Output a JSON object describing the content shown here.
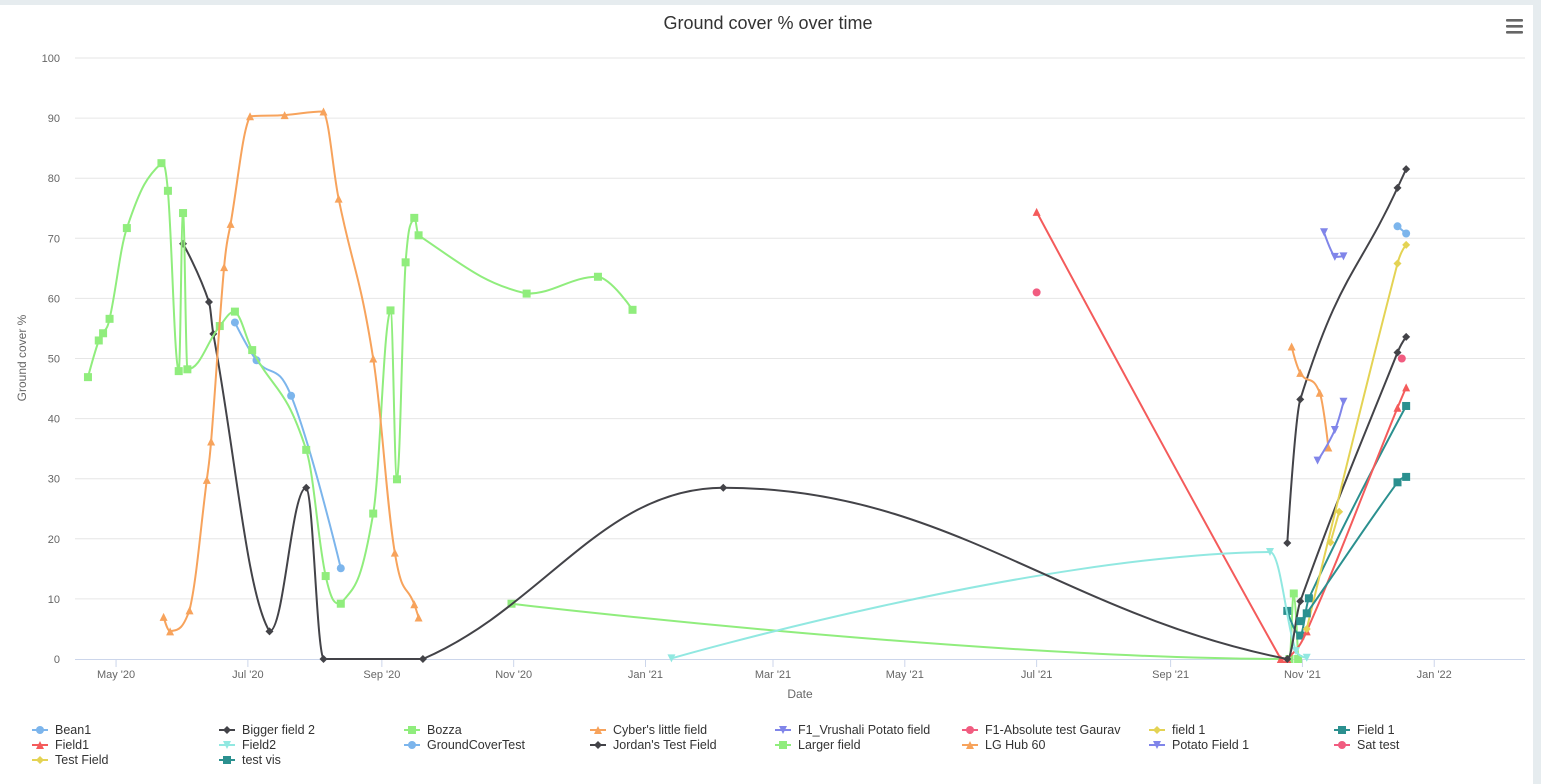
{
  "chart_data": {
    "type": "line",
    "title": "Ground cover % over time",
    "xlabel": "Date",
    "ylabel": "Ground cover %",
    "ylim": [
      0,
      100
    ],
    "yticks": [
      0,
      10,
      20,
      30,
      40,
      50,
      60,
      70,
      80,
      90,
      100
    ],
    "xlim": [
      "2020-04-12",
      "2022-02-12"
    ],
    "xticks": [
      {
        "date": "2020-05-01",
        "label": "May '20"
      },
      {
        "date": "2020-07-01",
        "label": "Jul '20"
      },
      {
        "date": "2020-09-01",
        "label": "Sep '20"
      },
      {
        "date": "2020-11-01",
        "label": "Nov '20"
      },
      {
        "date": "2021-01-01",
        "label": "Jan '21"
      },
      {
        "date": "2021-03-01",
        "label": "Mar '21"
      },
      {
        "date": "2021-05-01",
        "label": "May '21"
      },
      {
        "date": "2021-07-01",
        "label": "Jul '21"
      },
      {
        "date": "2021-09-01",
        "label": "Sep '21"
      },
      {
        "date": "2021-11-01",
        "label": "Nov '21"
      },
      {
        "date": "2022-01-01",
        "label": "Jan '22"
      }
    ],
    "grid": true,
    "legend_position": "bottom",
    "series": [
      {
        "name": "Bean1",
        "color": "#7cb5ec",
        "marker": "circle",
        "points": [
          [
            "2021-12-15",
            72.0
          ],
          [
            "2021-12-19",
            70.8
          ]
        ]
      },
      {
        "name": "Bigger field 2",
        "color": "#434348",
        "marker": "diamond",
        "points": [
          [
            "2021-10-25",
            19.3
          ],
          [
            "2021-10-31",
            43.2
          ],
          [
            "2021-12-15",
            78.4
          ],
          [
            "2021-12-19",
            81.5
          ]
        ]
      },
      {
        "name": "Bozza",
        "color": "#90ed7d",
        "marker": "square",
        "points": [
          [
            "2020-10-31",
            9.2
          ],
          [
            "2021-10-26",
            0.0
          ],
          [
            "2021-10-28",
            10.9
          ],
          [
            "2021-10-30",
            0.0
          ]
        ]
      },
      {
        "name": "Cyber's little field",
        "color": "#f7a35c",
        "marker": "triangle",
        "points": [
          [
            "2021-10-27",
            52.0
          ],
          [
            "2021-10-31",
            47.6
          ],
          [
            "2021-11-09",
            44.3
          ],
          [
            "2021-11-13",
            35.2
          ]
        ]
      },
      {
        "name": "F1_Vrushali Potato field",
        "color": "#8085e9",
        "marker": "triangle-down",
        "points": [
          [
            "2021-11-11",
            71.0
          ],
          [
            "2021-11-16",
            66.9
          ],
          [
            "2021-11-20",
            67.0
          ]
        ]
      },
      {
        "name": "F1-Absolute test Gaurav",
        "color": "#f15c80",
        "marker": "circle",
        "points": [
          [
            "2021-07-01",
            61.0
          ]
        ]
      },
      {
        "name": "field 1",
        "color": "#e4d354",
        "marker": "diamond",
        "points": [
          [
            "2021-11-14",
            19.4
          ],
          [
            "2021-11-18",
            24.5
          ]
        ]
      },
      {
        "name": "Field 1",
        "color": "#2b908f",
        "marker": "square",
        "points": [
          [
            "2021-10-25",
            8.0
          ],
          [
            "2021-10-31",
            3.9
          ],
          [
            "2021-11-04",
            10.1
          ],
          [
            "2021-12-19",
            42.1
          ]
        ]
      },
      {
        "name": "Field1",
        "color": "#f45b5b",
        "marker": "triangle",
        "points": [
          [
            "2021-07-01",
            74.4
          ],
          [
            "2021-10-22",
            0.0
          ],
          [
            "2021-10-25",
            0.0
          ],
          [
            "2021-11-03",
            4.6
          ],
          [
            "2021-12-15",
            41.8
          ],
          [
            "2021-12-19",
            45.2
          ]
        ]
      },
      {
        "name": "Field2",
        "color": "#91e8e1",
        "marker": "triangle-down",
        "points": [
          [
            "2021-01-13",
            0.1
          ],
          [
            "2021-10-17",
            17.8
          ],
          [
            "2021-10-29",
            1.3
          ],
          [
            "2021-11-03",
            0.2
          ]
        ]
      },
      {
        "name": "GroundCoverTest",
        "color": "#7cb5ec",
        "marker": "circle",
        "points": [
          [
            "2020-06-25",
            56.0
          ],
          [
            "2020-07-05",
            49.7
          ],
          [
            "2020-07-21",
            43.8
          ],
          [
            "2020-08-13",
            15.1
          ]
        ]
      },
      {
        "name": "Jordan's Test Field",
        "color": "#434348",
        "marker": "diamond",
        "points": [
          [
            "2020-06-01",
            69.1
          ],
          [
            "2020-06-13",
            59.4
          ],
          [
            "2020-06-15",
            54.1
          ],
          [
            "2020-07-11",
            4.6
          ],
          [
            "2020-07-28",
            28.5
          ],
          [
            "2020-08-05",
            0.0
          ],
          [
            "2020-09-20",
            0.0
          ],
          [
            "2021-02-06",
            28.5
          ],
          [
            "2021-10-25",
            0.0
          ],
          [
            "2021-10-31",
            9.6
          ],
          [
            "2021-12-15",
            51.0
          ],
          [
            "2021-12-19",
            53.6
          ]
        ]
      },
      {
        "name": "Larger field",
        "color": "#90ed7d",
        "marker": "square",
        "points": [
          [
            "2020-04-18",
            46.9
          ],
          [
            "2020-04-23",
            53.0
          ],
          [
            "2020-04-25",
            54.2
          ],
          [
            "2020-04-28",
            56.6
          ],
          [
            "2020-05-06",
            71.7
          ],
          [
            "2020-05-22",
            82.5
          ],
          [
            "2020-05-25",
            77.9
          ],
          [
            "2020-05-30",
            47.9
          ],
          [
            "2020-06-01",
            74.2
          ],
          [
            "2020-06-03",
            48.2
          ],
          [
            "2020-06-18",
            55.4
          ],
          [
            "2020-06-25",
            57.8
          ],
          [
            "2020-07-03",
            51.4
          ],
          [
            "2020-07-28",
            34.8
          ],
          [
            "2020-08-06",
            13.8
          ],
          [
            "2020-08-13",
            9.2
          ],
          [
            "2020-08-28",
            24.2
          ],
          [
            "2020-09-05",
            58.0
          ],
          [
            "2020-09-08",
            29.9
          ],
          [
            "2020-09-12",
            66.0
          ],
          [
            "2020-09-16",
            73.4
          ],
          [
            "2020-09-18",
            70.5
          ],
          [
            "2020-11-07",
            60.8
          ],
          [
            "2020-12-10",
            63.6
          ],
          [
            "2020-12-26",
            58.1
          ]
        ]
      },
      {
        "name": "LG Hub 60",
        "color": "#f7a35c",
        "marker": "triangle",
        "points": [
          [
            "2020-05-23",
            7.0
          ],
          [
            "2020-05-26",
            4.6
          ],
          [
            "2020-06-04",
            8.1
          ],
          [
            "2020-06-12",
            29.8
          ],
          [
            "2020-06-14",
            36.2
          ],
          [
            "2020-06-20",
            65.2
          ],
          [
            "2020-06-23",
            72.4
          ],
          [
            "2020-07-02",
            90.3
          ],
          [
            "2020-07-18",
            90.5
          ],
          [
            "2020-08-05",
            91.1
          ],
          [
            "2020-08-12",
            76.6
          ],
          [
            "2020-08-28",
            50.0
          ],
          [
            "2020-09-07",
            17.7
          ],
          [
            "2020-09-16",
            9.1
          ],
          [
            "2020-09-18",
            6.9
          ]
        ]
      },
      {
        "name": "Potato Field 1",
        "color": "#8085e9",
        "marker": "triangle-down",
        "points": [
          [
            "2021-11-08",
            33.0
          ],
          [
            "2021-11-16",
            38.1
          ],
          [
            "2021-11-20",
            42.8
          ]
        ]
      },
      {
        "name": "Sat test",
        "color": "#f15c80",
        "marker": "circle",
        "points": [
          [
            "2021-12-17",
            50.0
          ]
        ]
      },
      {
        "name": "Test Field",
        "color": "#e4d354",
        "marker": "diamond",
        "points": [
          [
            "2021-11-03",
            5.0
          ],
          [
            "2021-12-15",
            65.8
          ],
          [
            "2021-12-19",
            68.9
          ]
        ]
      },
      {
        "name": "test vis",
        "color": "#2b908f",
        "marker": "square",
        "points": [
          [
            "2021-10-31",
            6.3
          ],
          [
            "2021-11-03",
            7.6
          ],
          [
            "2021-12-15",
            29.4
          ],
          [
            "2021-12-19",
            30.3
          ]
        ]
      }
    ]
  },
  "toolbar": {
    "menu_icon": "hamburger-menu-icon"
  }
}
